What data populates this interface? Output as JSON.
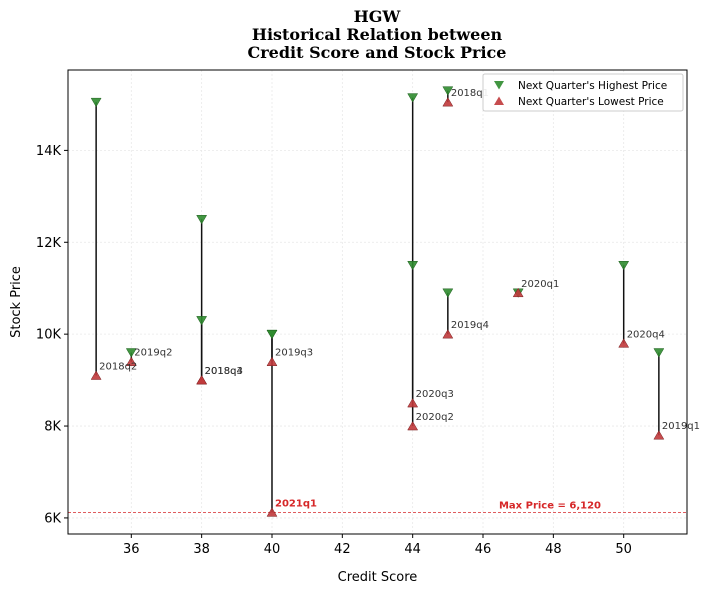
{
  "chart_data": {
    "type": "scatter",
    "title_lines": [
      "HGW",
      "Historical Relation between",
      "Credit Score and Stock Price"
    ],
    "xlabel": "Credit Score",
    "ylabel": "Stock Price",
    "xlim": [
      34.2,
      51.8
    ],
    "ylim": [
      5650,
      15750
    ],
    "x_ticks": [
      36,
      38,
      40,
      42,
      44,
      46,
      48,
      50
    ],
    "y_ticks": [
      6000,
      8000,
      10000,
      12000,
      14000
    ],
    "y_tick_labels": [
      "6K",
      "8K",
      "10K",
      "12K",
      "14K"
    ],
    "grid": true,
    "legend_position": "top-right",
    "series": [
      {
        "name": "Next Quarter's Highest Price",
        "marker": "triangle-down",
        "color": "#2e8b2e"
      },
      {
        "name": "Next Quarter's Lowest Price",
        "marker": "triangle-up",
        "color": "#c0393b"
      }
    ],
    "points": [
      {
        "x": 35,
        "high": 15050,
        "low": 9100,
        "label": "2018q2"
      },
      {
        "x": 36,
        "high": 9600,
        "low": 9400,
        "label": "2019q2"
      },
      {
        "x": 38,
        "high": 12500,
        "low": 9000,
        "label": "2018q4"
      },
      {
        "x": 38,
        "high": 10300,
        "low": 9000,
        "label": "2018q3"
      },
      {
        "x": 40,
        "high": 10000,
        "low": 9400,
        "label": "2019q3"
      },
      {
        "x": 40,
        "high": 10000,
        "low": 6120,
        "label": "2021q1",
        "highlight": true
      },
      {
        "x": 44,
        "high": 15150,
        "low": 8500,
        "label": "2020q3"
      },
      {
        "x": 44,
        "high": 11500,
        "low": 8000,
        "label": "2020q2"
      },
      {
        "x": 45,
        "high": 15300,
        "low": 15050,
        "label": "2018q1"
      },
      {
        "x": 45,
        "high": 10900,
        "low": 10000,
        "label": "2019q4"
      },
      {
        "x": 47,
        "high": 10900,
        "low": 10900,
        "label": "2020q1"
      },
      {
        "x": 50,
        "high": 11500,
        "low": 9800,
        "label": "2020q4"
      },
      {
        "x": 51,
        "high": 9600,
        "low": 7800,
        "label": "2019q1"
      }
    ],
    "reference_line": {
      "y": 6120,
      "label": "Max Price = 6,120",
      "color": "#d62728"
    }
  }
}
